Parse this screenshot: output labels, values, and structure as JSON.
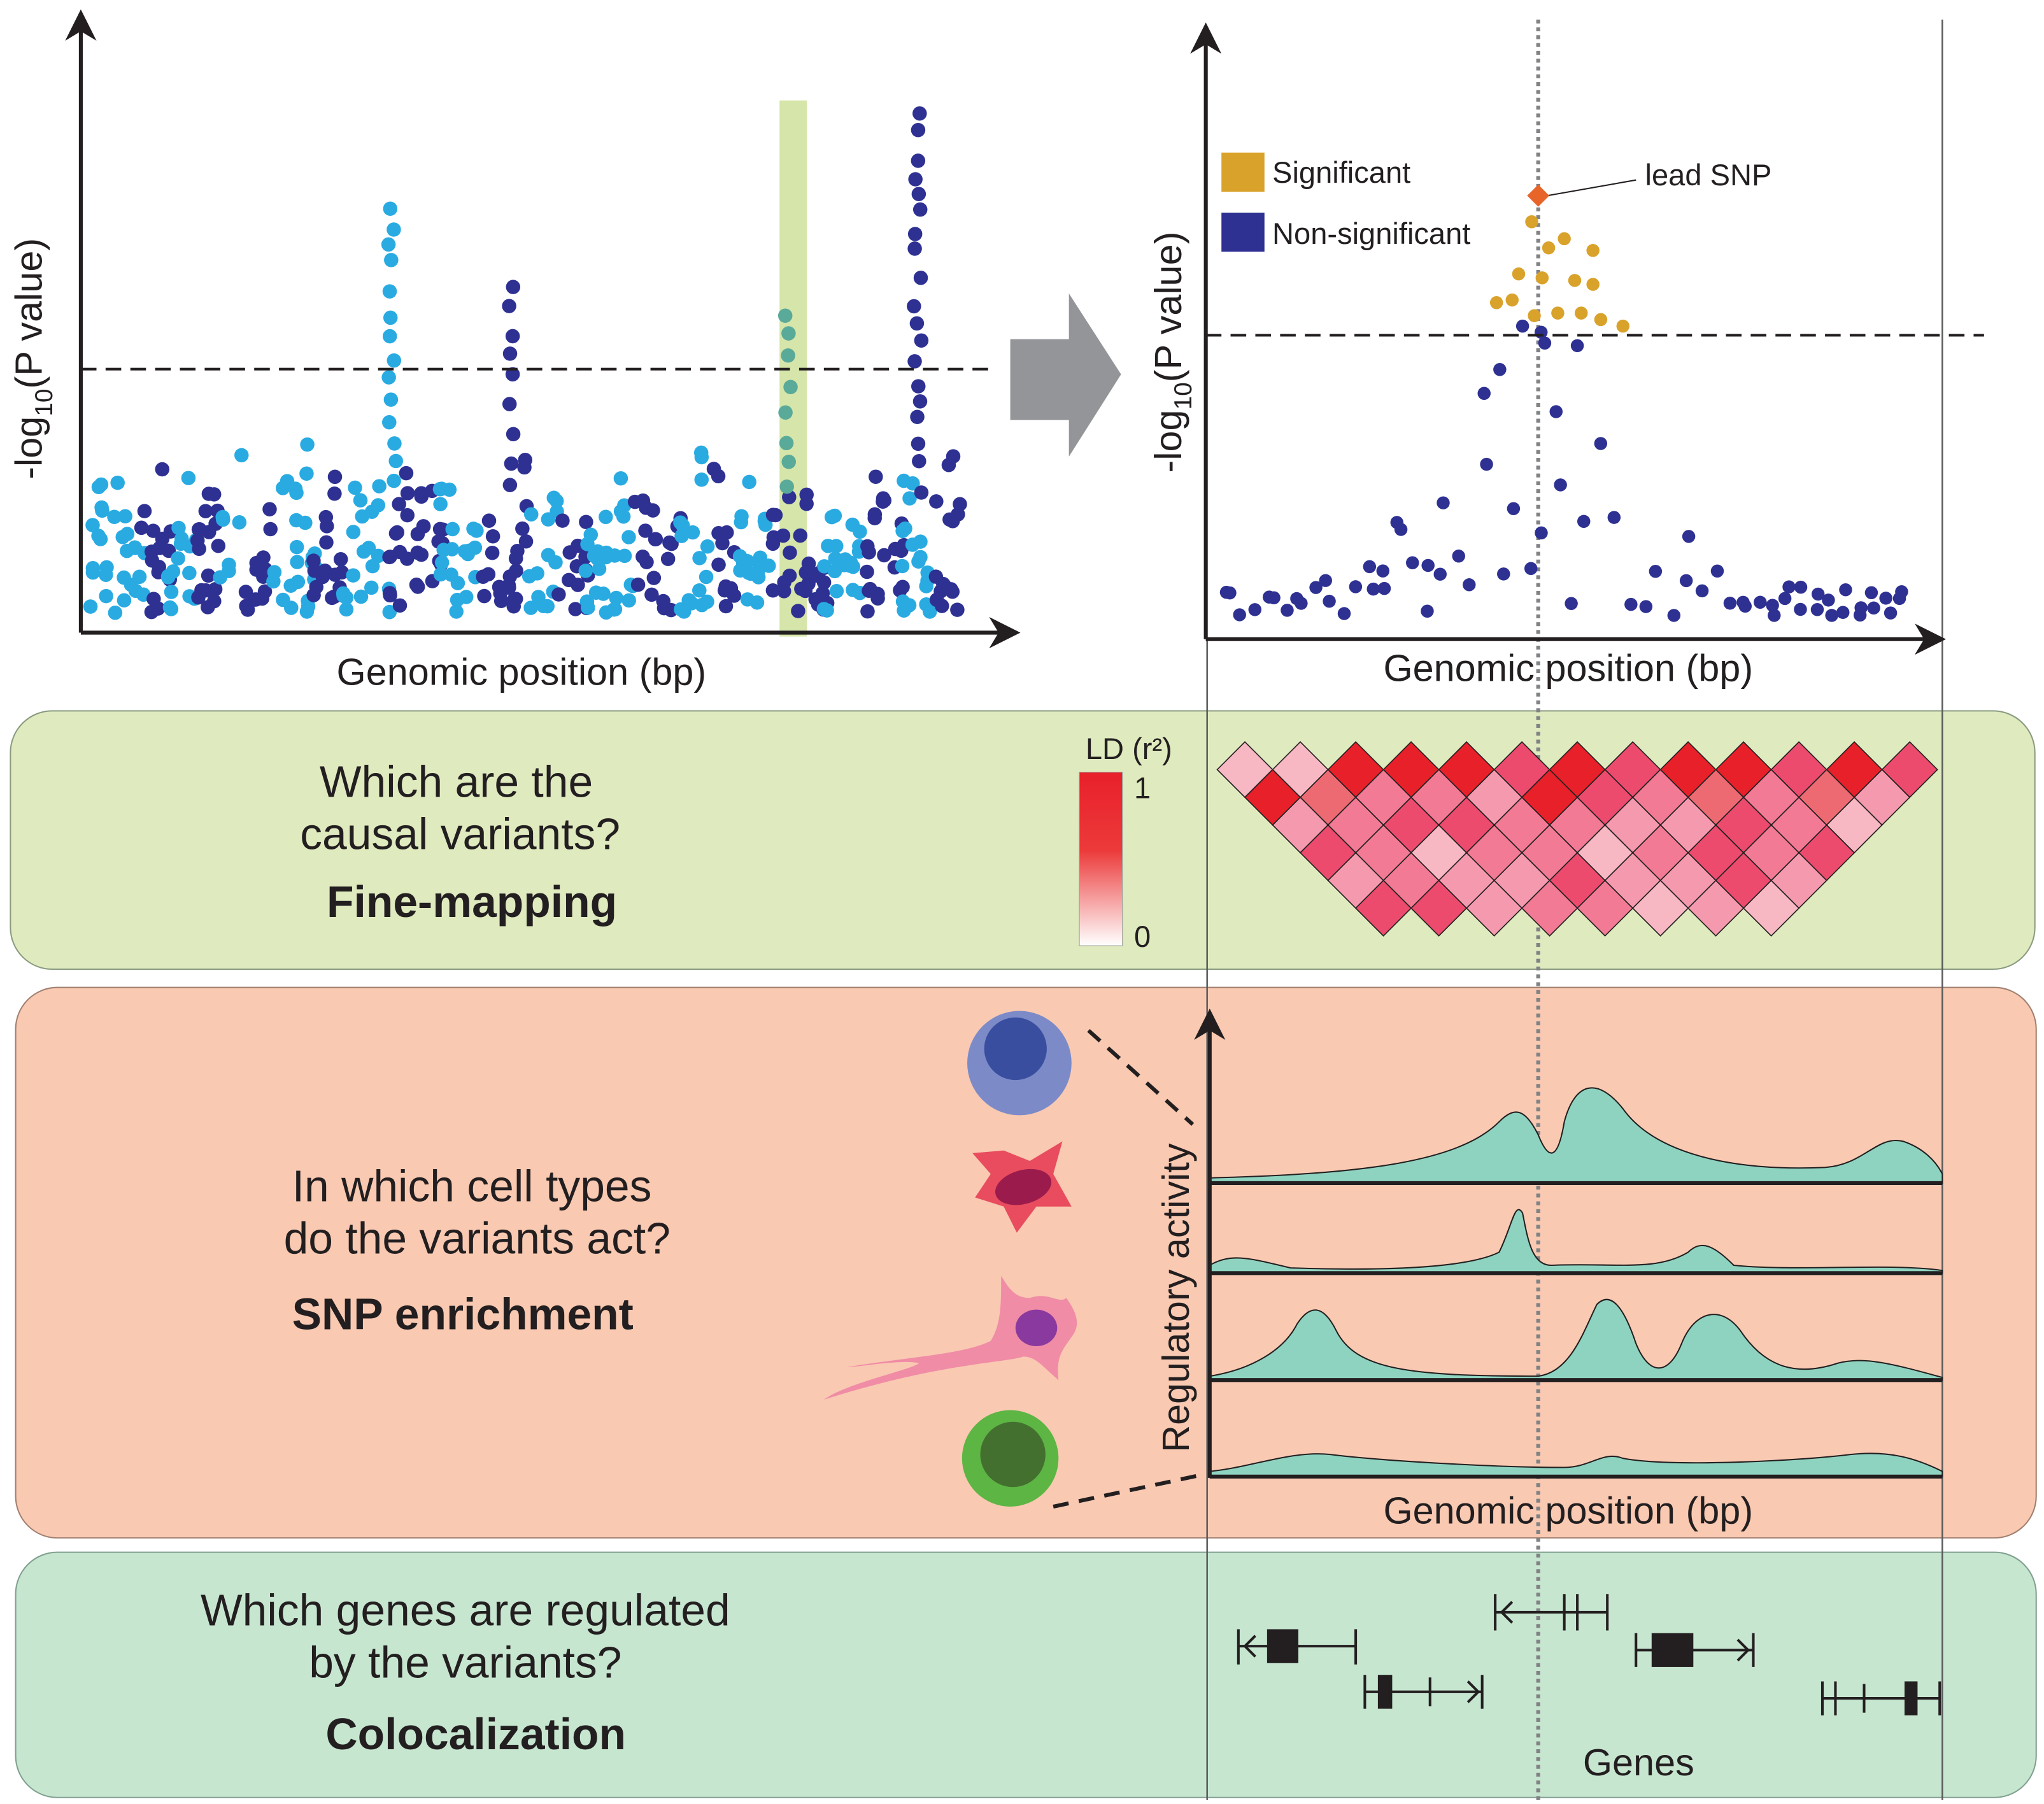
{
  "manhattan_plot": {
    "y_label": {
      "prefix": "-log",
      "subscript": "10",
      "suffix": "(P value)"
    },
    "x_label": "Genomic position (bp)"
  },
  "locus_plot": {
    "y_label": {
      "prefix": "-log",
      "subscript": "10",
      "suffix": "(P value)"
    },
    "x_label": "Genomic position (bp)",
    "legend": [
      "Significant",
      "Non-significant"
    ],
    "annotation": "lead SNP"
  },
  "fine_mapping": {
    "question": [
      "Which are the",
      "causal variants?"
    ],
    "method": "Fine-mapping",
    "ld_legend": {
      "title": "LD (r²)",
      "max": "1",
      "min": "0"
    }
  },
  "snp_enrichment": {
    "question": [
      "In which cell types",
      "do the variants act?"
    ],
    "method": "SNP enrichment",
    "y_label": "Regulatory activity",
    "x_label": "Genomic position (bp)"
  },
  "colocalization": {
    "question": [
      "Which genes are regulated",
      "by the variants?"
    ],
    "method": "Colocalization",
    "genes_label": "Genes"
  }
}
